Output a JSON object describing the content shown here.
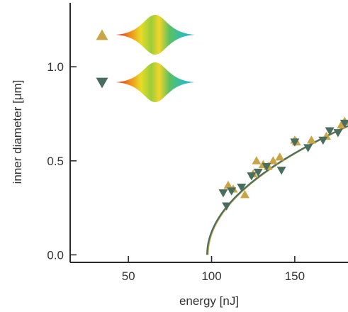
{
  "chart_data": {
    "type": "scatter",
    "xlabel": "energy [nJ]",
    "ylabel": "inner diameter [μm]",
    "xlim": [
      15,
      182
    ],
    "ylim": [
      -0.04,
      1.34
    ],
    "xticks": [
      50,
      100,
      150
    ],
    "xtick_labels": [
      "50",
      "100",
      "150"
    ],
    "yticks": [
      0.0,
      0.5,
      1.0
    ],
    "ytick_labels": [
      "0.0",
      "0.5",
      "1.0"
    ],
    "grid": false,
    "legend_position": "top-left",
    "series": [
      {
        "marker": "triangle-up",
        "color": "#C9A548",
        "points": [
          {
            "x": 110,
            "y": 0.37
          },
          {
            "x": 113,
            "y": 0.35
          },
          {
            "x": 120,
            "y": 0.32
          },
          {
            "x": 125,
            "y": 0.43
          },
          {
            "x": 127,
            "y": 0.5
          },
          {
            "x": 131,
            "y": 0.48
          },
          {
            "x": 134,
            "y": 0.47
          },
          {
            "x": 137,
            "y": 0.5
          },
          {
            "x": 141,
            "y": 0.52
          },
          {
            "x": 150,
            "y": 0.61
          },
          {
            "x": 151,
            "y": 0.6
          },
          {
            "x": 160,
            "y": 0.61
          },
          {
            "x": 169,
            "y": 0.63
          },
          {
            "x": 178,
            "y": 0.69
          },
          {
            "x": 180,
            "y": 0.71
          }
        ],
        "fit": {
          "x0": 97.8,
          "a": 0.0745,
          "x_end": 182
        }
      },
      {
        "marker": "triangle-down",
        "color": "#4A6E5E",
        "points": [
          {
            "x": 107,
            "y": 0.33
          },
          {
            "x": 109,
            "y": 0.26
          },
          {
            "x": 112,
            "y": 0.34
          },
          {
            "x": 118,
            "y": 0.36
          },
          {
            "x": 124,
            "y": 0.42
          },
          {
            "x": 128,
            "y": 0.44
          },
          {
            "x": 133,
            "y": 0.47
          },
          {
            "x": 142,
            "y": 0.45
          },
          {
            "x": 150,
            "y": 0.6
          },
          {
            "x": 158,
            "y": 0.57
          },
          {
            "x": 167,
            "y": 0.61
          },
          {
            "x": 171,
            "y": 0.66
          },
          {
            "x": 176,
            "y": 0.65
          },
          {
            "x": 180,
            "y": 0.7
          }
        ],
        "fit": {
          "x0": 97.3,
          "a": 0.0745,
          "x_end": 182
        }
      }
    ],
    "legend_entries": [
      {
        "marker": "triangle-up",
        "color": "#C9A548",
        "icon": "cone-profile-icon"
      },
      {
        "marker": "triangle-down",
        "color": "#4A6E5E",
        "icon": "cone-profile-icon"
      }
    ]
  }
}
